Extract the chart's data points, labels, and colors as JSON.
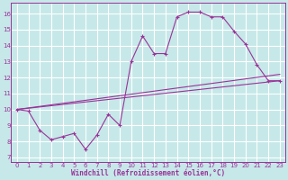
{
  "xlabel": "Windchill (Refroidissement éolien,°C)",
  "background_color": "#c6e8e8",
  "grid_color": "#b0d8d8",
  "line_color": "#993399",
  "spine_color": "#993399",
  "xlim": [
    -0.5,
    23.5
  ],
  "ylim": [
    6.7,
    16.7
  ],
  "yticks": [
    7,
    8,
    9,
    10,
    11,
    12,
    13,
    14,
    15,
    16
  ],
  "xticks": [
    0,
    1,
    2,
    3,
    4,
    5,
    6,
    7,
    8,
    9,
    10,
    11,
    12,
    13,
    14,
    15,
    16,
    17,
    18,
    19,
    20,
    21,
    22,
    23
  ],
  "series_main": {
    "x": [
      0,
      1,
      2,
      3,
      4,
      5,
      6,
      7,
      8,
      9,
      10,
      11,
      12,
      13,
      14,
      15,
      16,
      17,
      18,
      19,
      20,
      21,
      22,
      23
    ],
    "y": [
      10.0,
      9.9,
      8.7,
      8.1,
      8.3,
      8.5,
      7.5,
      8.4,
      9.7,
      9.0,
      13.0,
      14.6,
      13.5,
      13.5,
      15.8,
      16.1,
      16.1,
      15.8,
      15.8,
      14.9,
      14.1,
      12.8,
      11.8,
      11.8
    ]
  },
  "series_line1": {
    "x": [
      0,
      23
    ],
    "y": [
      10.0,
      11.8
    ]
  },
  "series_line2": {
    "x": [
      0,
      23
    ],
    "y": [
      10.0,
      12.2
    ]
  },
  "figsize": [
    3.2,
    2.0
  ],
  "dpi": 100
}
